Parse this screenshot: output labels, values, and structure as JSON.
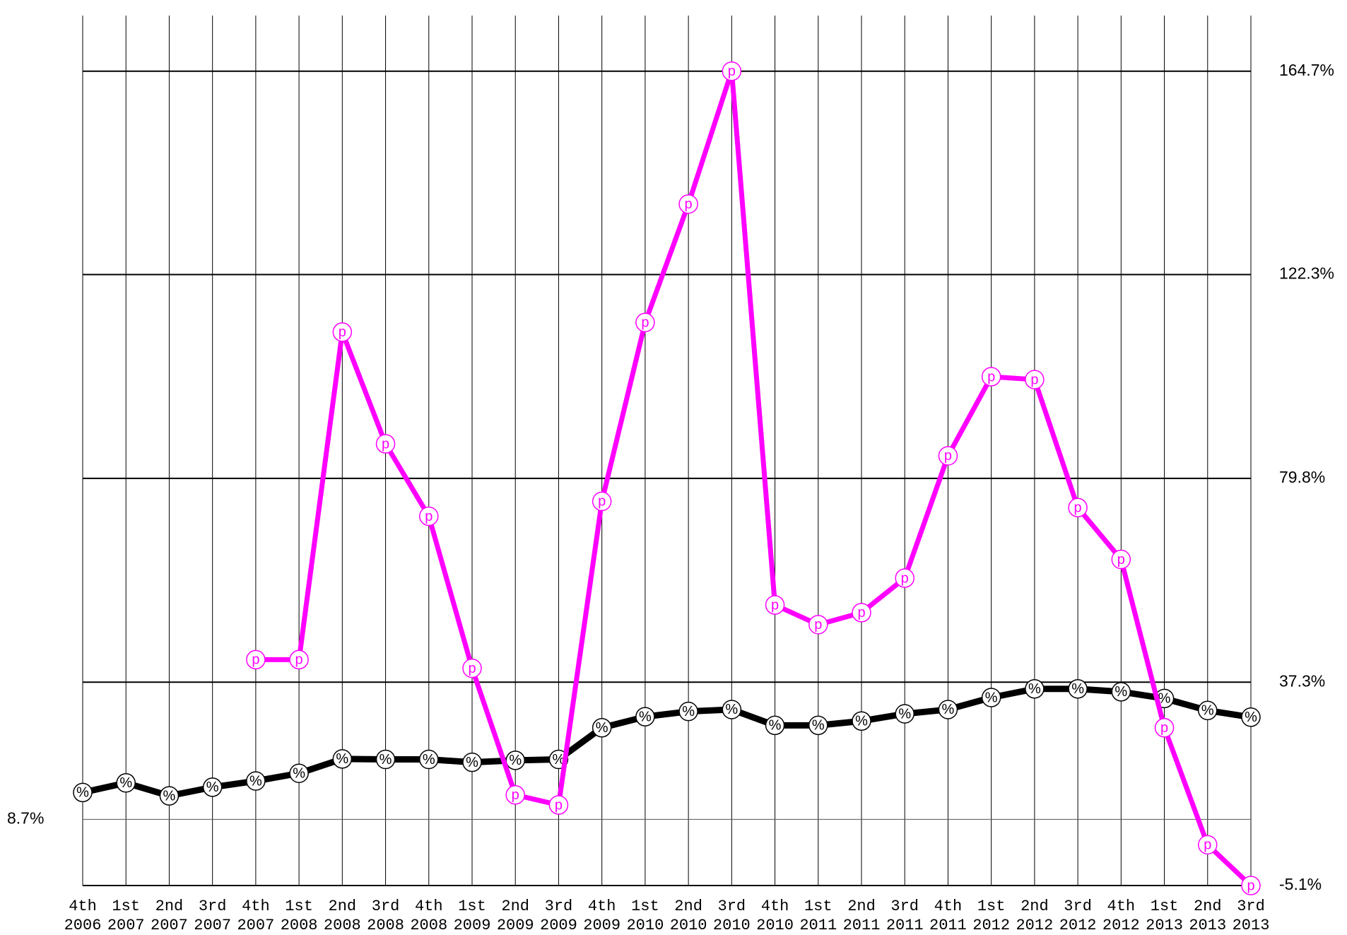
{
  "chart_data": {
    "type": "line",
    "categories": [
      [
        "4th",
        "2006"
      ],
      [
        "1st",
        "2007"
      ],
      [
        "2nd",
        "2007"
      ],
      [
        "3rd",
        "2007"
      ],
      [
        "4th",
        "2007"
      ],
      [
        "1st",
        "2008"
      ],
      [
        "2nd",
        "2008"
      ],
      [
        "3rd",
        "2008"
      ],
      [
        "4th",
        "2008"
      ],
      [
        "1st",
        "2009"
      ],
      [
        "2nd",
        "2009"
      ],
      [
        "3rd",
        "2009"
      ],
      [
        "4th",
        "2009"
      ],
      [
        "1st",
        "2010"
      ],
      [
        "2nd",
        "2010"
      ],
      [
        "3rd",
        "2010"
      ],
      [
        "4th",
        "2010"
      ],
      [
        "1st",
        "2011"
      ],
      [
        "2nd",
        "2011"
      ],
      [
        "3rd",
        "2011"
      ],
      [
        "4th",
        "2011"
      ],
      [
        "1st",
        "2012"
      ],
      [
        "2nd",
        "2012"
      ],
      [
        "3rd",
        "2012"
      ],
      [
        "4th",
        "2012"
      ],
      [
        "1st",
        "2013"
      ],
      [
        "2nd",
        "2013"
      ],
      [
        "3rd",
        "2013"
      ]
    ],
    "series": [
      {
        "marker": "%",
        "color": "#000000",
        "values": [
          14.3,
          16.3,
          13.6,
          15.4,
          16.7,
          18.3,
          21.3,
          21.2,
          21.2,
          20.6,
          21.0,
          21.2,
          27.8,
          30.1,
          31.2,
          31.6,
          28.3,
          28.3,
          29.2,
          30.7,
          31.6,
          34.1,
          35.9,
          35.9,
          35.3,
          33.9,
          31.4,
          30.0
        ]
      },
      {
        "marker": "p",
        "color": "#ff00ff",
        "values": [
          null,
          null,
          null,
          null,
          42.0,
          42.0,
          110.3,
          87.0,
          71.9,
          40.2,
          13.8,
          11.7,
          75.0,
          112.3,
          137.0,
          164.7,
          53.4,
          49.3,
          51.8,
          59.0,
          84.5,
          101.0,
          100.4,
          73.7,
          62.9,
          27.8,
          3.4,
          -5.1
        ]
      }
    ],
    "ylim": [
      -5.1,
      176.3
    ],
    "yticks": [
      {
        "value": 164.7,
        "label": "164.7%"
      },
      {
        "value": 122.3,
        "label": "122.3%"
      },
      {
        "value": 79.8,
        "label": "79.8%"
      },
      {
        "value": 37.3,
        "label": "37.3%"
      },
      {
        "value": -5.1,
        "label": "-5.1%"
      }
    ],
    "yticks_left": [
      {
        "value": 8.7,
        "label": "8.7%"
      }
    ]
  }
}
